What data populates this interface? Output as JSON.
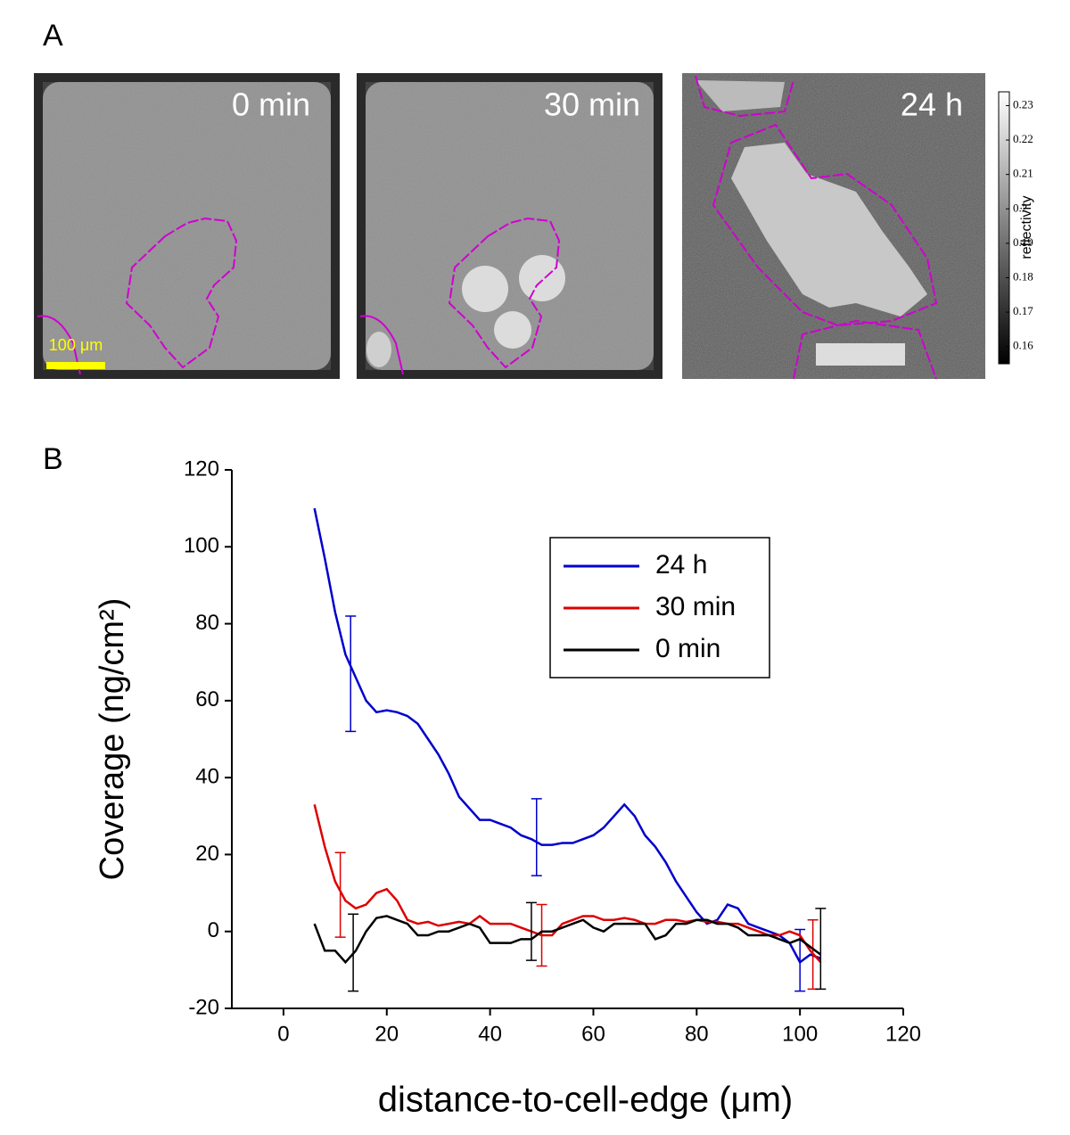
{
  "panel_labels": [
    "A",
    "B"
  ],
  "images": {
    "labels": [
      "0 min",
      "30 min",
      "24 h"
    ],
    "scale_bar": "100 μm"
  },
  "colorbar": {
    "label": "reflectivity",
    "lim": [
      0.155,
      0.234
    ],
    "ticks": [
      0.16,
      0.17,
      0.18,
      0.19,
      0.2,
      0.21,
      0.22,
      0.23
    ]
  },
  "chart_data": {
    "type": "line",
    "xlabel": "distance-to-cell-edge (μm)",
    "ylabel": "Coverage (ng/cm²)",
    "xlim": [
      -10,
      120
    ],
    "xticks": [
      0,
      20,
      40,
      60,
      80,
      100,
      120
    ],
    "ylim": [
      -20,
      120
    ],
    "yticks": [
      -20,
      0,
      20,
      40,
      60,
      80,
      100,
      120
    ],
    "legend": "upper right",
    "x": [
      6,
      8,
      10,
      12,
      14,
      16,
      18,
      20,
      22,
      24,
      26,
      28,
      30,
      32,
      34,
      36,
      38,
      40,
      42,
      44,
      46,
      48,
      50,
      52,
      54,
      56,
      58,
      60,
      62,
      64,
      66,
      68,
      70,
      72,
      74,
      76,
      78,
      80,
      82,
      84,
      86,
      88,
      90,
      92,
      94,
      96,
      98,
      100,
      102,
      104
    ],
    "series": [
      {
        "name": "24 h",
        "color": "#0000cc",
        "values": [
          110,
          97,
          83,
          72,
          66,
          60,
          57,
          57.5,
          57,
          56,
          54,
          50,
          46,
          41,
          35,
          32,
          29,
          29,
          28,
          27,
          25,
          24,
          22.5,
          22.5,
          23,
          23,
          24,
          25,
          27,
          30,
          33,
          30,
          25,
          22,
          18,
          13,
          9,
          5,
          2,
          3,
          7,
          6,
          2,
          1,
          0,
          -1,
          -3,
          -8,
          -6,
          -7
        ],
        "errorbars": {
          "x": [
            13,
            49,
            100
          ],
          "values": [
            67,
            24.5,
            -7.5
          ],
          "errors": [
            15,
            10,
            8
          ]
        }
      },
      {
        "name": "30 min",
        "color": "#dd0000",
        "values": [
          33,
          22,
          13,
          8,
          6,
          7,
          10,
          11,
          8,
          3,
          2,
          2.5,
          1.5,
          2,
          2.5,
          2,
          4,
          2,
          2,
          2,
          1,
          0,
          -1,
          -1,
          2,
          3,
          4,
          4,
          3,
          3,
          3.5,
          3,
          2,
          2,
          3,
          3,
          2.5,
          3,
          2.5,
          2.5,
          2,
          2,
          1,
          0,
          -1,
          -1,
          0,
          -1,
          -5,
          -8
        ],
        "errorbars": {
          "x": [
            11,
            50,
            102.5
          ],
          "values": [
            9.5,
            -1,
            -6
          ],
          "errors": [
            11,
            8,
            9
          ]
        }
      },
      {
        "name": "0 min",
        "color": "#000000",
        "values": [
          2,
          -5,
          -5,
          -8,
          -5,
          0,
          3.5,
          4,
          3,
          2,
          -1,
          -1,
          0,
          0,
          1,
          2,
          1,
          -3,
          -3,
          -3,
          -2,
          -2,
          0,
          0,
          1,
          2,
          3,
          1,
          0,
          2,
          2,
          2,
          2,
          -2,
          -1,
          2,
          2,
          3,
          3,
          2,
          2,
          1,
          -1,
          -1,
          -1,
          -2,
          -3,
          -2,
          -4,
          -6
        ],
        "errorbars": {
          "x": [
            13.5,
            48,
            104
          ],
          "values": [
            -5.5,
            0,
            -4.5
          ],
          "errors": [
            10,
            7.5,
            10.5
          ]
        }
      }
    ]
  }
}
